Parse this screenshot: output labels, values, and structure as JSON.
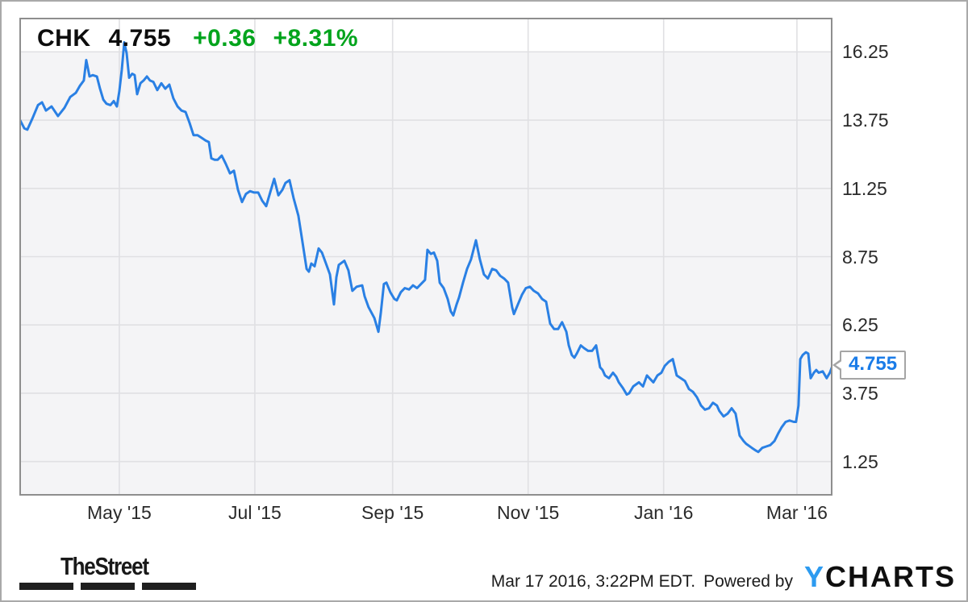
{
  "header": {
    "ticker": "CHK",
    "price": "4.755",
    "change": "+0.36",
    "change_pct": "+8.31%",
    "change_color": "#00a41c",
    "text_color": "#0d0d0d"
  },
  "chart_data": {
    "type": "line",
    "title": "CHK 1-year stock price chart",
    "grid": true,
    "legend": false,
    "plot_bg": "#f4f4f6",
    "header_band_bg": "#ffffff",
    "gridline_color": "#e0e0e3",
    "border_color": "#8e8e8e",
    "x_axis": {
      "unit": "days since 2015-03-17",
      "range": [
        0,
        366
      ],
      "ticks": [
        {
          "d": 45,
          "label": "May '15"
        },
        {
          "d": 106,
          "label": "Jul '15"
        },
        {
          "d": 168,
          "label": "Sep '15"
        },
        {
          "d": 229,
          "label": "Nov '15"
        },
        {
          "d": 290,
          "label": "Jan '16"
        },
        {
          "d": 350,
          "label": "Mar '16"
        }
      ]
    },
    "y_axis": {
      "range": [
        0,
        17.5
      ],
      "ticks": [
        {
          "v": 16.25,
          "label": "16.25"
        },
        {
          "v": 13.75,
          "label": "13.75"
        },
        {
          "v": 11.25,
          "label": "11.25"
        },
        {
          "v": 8.75,
          "label": "8.75"
        },
        {
          "v": 6.25,
          "label": "6.25"
        },
        {
          "v": 3.75,
          "label": "3.75"
        },
        {
          "v": 1.25,
          "label": "1.25"
        }
      ]
    },
    "series": [
      {
        "name": "CHK",
        "color": "#2a80e4",
        "points": [
          [
            0,
            13.8
          ],
          [
            2.2,
            13.45
          ],
          [
            3.6,
            13.4
          ],
          [
            5.8,
            13.8
          ],
          [
            8.4,
            14.3
          ],
          [
            10.2,
            14.4
          ],
          [
            12,
            14.1
          ],
          [
            14.5,
            14.25
          ],
          [
            17.4,
            13.9
          ],
          [
            20.3,
            14.2
          ],
          [
            22.9,
            14.6
          ],
          [
            25.4,
            14.75
          ],
          [
            27.2,
            15.0
          ],
          [
            29,
            15.2
          ],
          [
            30.1,
            15.95
          ],
          [
            31.6,
            15.35
          ],
          [
            33,
            15.4
          ],
          [
            34.9,
            15.35
          ],
          [
            36.3,
            14.9
          ],
          [
            37.8,
            14.5
          ],
          [
            39.2,
            14.35
          ],
          [
            41,
            14.3
          ],
          [
            42.5,
            14.45
          ],
          [
            43.9,
            14.25
          ],
          [
            45,
            14.8
          ],
          [
            46.1,
            15.6
          ],
          [
            47.2,
            16.6
          ],
          [
            48.3,
            16.2
          ],
          [
            49.4,
            15.3
          ],
          [
            50.8,
            15.45
          ],
          [
            51.9,
            15.4
          ],
          [
            53,
            14.7
          ],
          [
            54.5,
            15.1
          ],
          [
            55.9,
            15.2
          ],
          [
            57.4,
            15.35
          ],
          [
            58.8,
            15.2
          ],
          [
            60.3,
            15.15
          ],
          [
            62.1,
            14.85
          ],
          [
            63.9,
            15.1
          ],
          [
            65.7,
            14.9
          ],
          [
            67.5,
            15.05
          ],
          [
            69.3,
            14.55
          ],
          [
            71.2,
            14.25
          ],
          [
            73,
            14.1
          ],
          [
            74.8,
            14.05
          ],
          [
            76.6,
            13.65
          ],
          [
            78.4,
            13.2
          ],
          [
            80.2,
            13.2
          ],
          [
            82.1,
            13.1
          ],
          [
            83.9,
            13.0
          ],
          [
            85.3,
            12.95
          ],
          [
            86.4,
            12.35
          ],
          [
            87.9,
            12.3
          ],
          [
            89.3,
            12.3
          ],
          [
            91.1,
            12.45
          ],
          [
            92.9,
            12.15
          ],
          [
            94.8,
            11.8
          ],
          [
            96.6,
            11.9
          ],
          [
            98.4,
            11.2
          ],
          [
            100.2,
            10.75
          ],
          [
            102,
            11.05
          ],
          [
            103.8,
            11.15
          ],
          [
            105.7,
            11.1
          ],
          [
            107.5,
            11.1
          ],
          [
            109.3,
            10.8
          ],
          [
            111.1,
            10.6
          ],
          [
            112.9,
            11.1
          ],
          [
            114.7,
            11.6
          ],
          [
            116.6,
            11.0
          ],
          [
            118.4,
            11.2
          ],
          [
            119.8,
            11.45
          ],
          [
            121.6,
            11.55
          ],
          [
            123.4,
            10.9
          ],
          [
            125.6,
            10.25
          ],
          [
            127.4,
            9.3
          ],
          [
            129.3,
            8.3
          ],
          [
            130.3,
            8.2
          ],
          [
            131.4,
            8.5
          ],
          [
            132.9,
            8.4
          ],
          [
            134.7,
            9.05
          ],
          [
            136.2,
            8.9
          ],
          [
            138,
            8.5
          ],
          [
            139.8,
            8.1
          ],
          [
            141.6,
            7.0
          ],
          [
            142.7,
            8.0
          ],
          [
            143.8,
            8.45
          ],
          [
            146.3,
            8.6
          ],
          [
            148.1,
            8.25
          ],
          [
            149.9,
            7.5
          ],
          [
            151.8,
            7.65
          ],
          [
            154.3,
            7.7
          ],
          [
            155.4,
            7.3
          ],
          [
            157.2,
            6.9
          ],
          [
            159.8,
            6.5
          ],
          [
            161.6,
            6.0
          ],
          [
            162.7,
            6.7
          ],
          [
            164.1,
            7.75
          ],
          [
            165.2,
            7.8
          ],
          [
            167,
            7.45
          ],
          [
            168.8,
            7.2
          ],
          [
            169.9,
            7.15
          ],
          [
            171.7,
            7.45
          ],
          [
            173.5,
            7.6
          ],
          [
            175.4,
            7.55
          ],
          [
            177.2,
            7.7
          ],
          [
            179,
            7.6
          ],
          [
            180.8,
            7.75
          ],
          [
            182.6,
            7.9
          ],
          [
            183.7,
            9.0
          ],
          [
            185.2,
            8.85
          ],
          [
            186.6,
            8.9
          ],
          [
            188.1,
            8.6
          ],
          [
            189.2,
            7.8
          ],
          [
            191,
            7.6
          ],
          [
            192.8,
            7.2
          ],
          [
            194.2,
            6.75
          ],
          [
            195.3,
            6.6
          ],
          [
            196.8,
            7.0
          ],
          [
            197.9,
            7.25
          ],
          [
            199.7,
            7.8
          ],
          [
            201.5,
            8.3
          ],
          [
            203.3,
            8.65
          ],
          [
            205.5,
            9.35
          ],
          [
            207.3,
            8.65
          ],
          [
            209.1,
            8.1
          ],
          [
            210.9,
            7.95
          ],
          [
            212.8,
            8.3
          ],
          [
            214.6,
            8.25
          ],
          [
            216.4,
            8.05
          ],
          [
            218.2,
            7.95
          ],
          [
            220,
            7.8
          ],
          [
            221.8,
            6.9
          ],
          [
            222.6,
            6.65
          ],
          [
            224.4,
            7.0
          ],
          [
            226.2,
            7.35
          ],
          [
            228,
            7.6
          ],
          [
            229.8,
            7.65
          ],
          [
            231.6,
            7.5
          ],
          [
            233.5,
            7.4
          ],
          [
            235.3,
            7.2
          ],
          [
            237.1,
            7.1
          ],
          [
            238.9,
            6.3
          ],
          [
            240.7,
            6.1
          ],
          [
            242.5,
            6.1
          ],
          [
            244.3,
            6.35
          ],
          [
            246.2,
            6.0
          ],
          [
            247.3,
            5.5
          ],
          [
            248.7,
            5.15
          ],
          [
            249.8,
            5.05
          ],
          [
            250.9,
            5.2
          ],
          [
            252.7,
            5.5
          ],
          [
            254.2,
            5.4
          ],
          [
            256,
            5.3
          ],
          [
            257.8,
            5.3
          ],
          [
            259.6,
            5.5
          ],
          [
            261.4,
            4.7
          ],
          [
            262.5,
            4.6
          ],
          [
            263.6,
            4.4
          ],
          [
            265.4,
            4.3
          ],
          [
            267.2,
            4.5
          ],
          [
            268.7,
            4.35
          ],
          [
            269.8,
            4.15
          ],
          [
            271.6,
            3.95
          ],
          [
            273.4,
            3.7
          ],
          [
            274.5,
            3.75
          ],
          [
            276.3,
            4.0
          ],
          [
            278.9,
            4.15
          ],
          [
            280.7,
            4.0
          ],
          [
            282.5,
            4.4
          ],
          [
            283.6,
            4.3
          ],
          [
            285.4,
            4.15
          ],
          [
            287.2,
            4.4
          ],
          [
            289,
            4.5
          ],
          [
            290.5,
            4.75
          ],
          [
            292.3,
            4.9
          ],
          [
            294.1,
            5.0
          ],
          [
            295.9,
            4.4
          ],
          [
            297.7,
            4.3
          ],
          [
            299.6,
            4.2
          ],
          [
            301.4,
            3.9
          ],
          [
            303.2,
            3.8
          ],
          [
            305,
            3.6
          ],
          [
            306.8,
            3.3
          ],
          [
            308.6,
            3.15
          ],
          [
            310.4,
            3.2
          ],
          [
            312.2,
            3.4
          ],
          [
            314,
            3.3
          ],
          [
            315.1,
            3.1
          ],
          [
            317,
            2.9
          ],
          [
            318.8,
            3.0
          ],
          [
            320.6,
            3.2
          ],
          [
            322.4,
            3.0
          ],
          [
            324.2,
            2.2
          ],
          [
            326,
            2.0
          ],
          [
            327.1,
            1.9
          ],
          [
            329.7,
            1.75
          ],
          [
            331.5,
            1.65
          ],
          [
            332.6,
            1.6
          ],
          [
            334.4,
            1.75
          ],
          [
            336.2,
            1.8
          ],
          [
            338,
            1.85
          ],
          [
            339.9,
            2.0
          ],
          [
            341.7,
            2.3
          ],
          [
            343.1,
            2.5
          ],
          [
            344.9,
            2.7
          ],
          [
            346.7,
            2.75
          ],
          [
            348.6,
            2.7
          ],
          [
            349.6,
            2.7
          ],
          [
            350.7,
            3.3
          ],
          [
            351.5,
            5.0
          ],
          [
            352.6,
            5.15
          ],
          [
            354,
            5.25
          ],
          [
            355.1,
            5.2
          ],
          [
            356.2,
            4.3
          ],
          [
            357.6,
            4.5
          ],
          [
            358.7,
            4.6
          ],
          [
            359.8,
            4.5
          ],
          [
            361.6,
            4.55
          ],
          [
            363.4,
            4.3
          ],
          [
            364.8,
            4.5
          ],
          [
            366,
            4.755
          ]
        ]
      }
    ],
    "last_label": {
      "text": "4.755",
      "value": 4.755,
      "color": "#1a7ce8"
    }
  },
  "footer": {
    "brand": "TheStreet",
    "timestamp": "Mar 17 2016, 3:22PM EDT.",
    "powered_by": "Powered by",
    "ycharts": {
      "first": "Y",
      "rest": "CHARTS",
      "y_color": "#2d9bf0"
    }
  }
}
